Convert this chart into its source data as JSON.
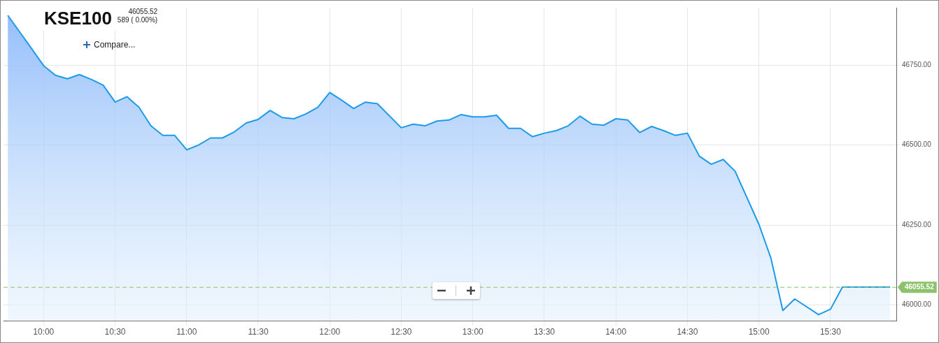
{
  "chart_data": {
    "type": "area",
    "title": "KSE100",
    "subtitle": "46055.52",
    "annotations": [
      "589 ( 0.00%)",
      "Compare..."
    ],
    "x": [
      9.75,
      9.9167,
      10,
      10.0833,
      10.1667,
      10.25,
      10.3333,
      10.4167,
      10.5,
      10.5833,
      10.6667,
      10.75,
      10.8333,
      10.9167,
      11,
      11.0833,
      11.1667,
      11.25,
      11.3333,
      11.4167,
      11.5,
      11.5833,
      11.6667,
      11.75,
      11.8333,
      11.9167,
      12,
      12.0833,
      12.1667,
      12.25,
      12.3333,
      12.5,
      12.5833,
      12.6667,
      12.75,
      12.8333,
      12.9167,
      13,
      13.0833,
      13.1667,
      13.25,
      13.3333,
      13.4167,
      13.5,
      13.5833,
      13.6667,
      13.75,
      13.8333,
      13.9167,
      14,
      14.0833,
      14.1667,
      14.25,
      14.3333,
      14.4167,
      14.5,
      14.5833,
      14.6667,
      14.75,
      14.8333,
      15,
      15.0833,
      15.1667,
      15.25,
      15.4167,
      15.5,
      15.5833,
      15.9167
    ],
    "series": [
      {
        "color": "#1e9be8",
        "values": [
          46905,
          46801,
          46748,
          46718,
          46707,
          46720,
          46705,
          46687,
          46634,
          46651,
          46618,
          46560,
          46530,
          46530,
          46485,
          46500,
          46522,
          46522,
          46541,
          46569,
          46580,
          46608,
          46586,
          46582,
          46597,
          46618,
          46664,
          46640,
          46614,
          46634,
          46629,
          46554,
          46565,
          46560,
          46575,
          46578,
          46595,
          46588,
          46588,
          46593,
          46552,
          46552,
          46526,
          46537,
          46545,
          46560,
          46590,
          46565,
          46562,
          46582,
          46578,
          46539,
          46558,
          46545,
          46530,
          46537,
          46465,
          46440,
          46455,
          46418,
          46252,
          46147,
          45983,
          46019,
          45970,
          45987,
          46056,
          46056
        ]
      }
    ],
    "xlim": [
      9.72,
      15.96
    ],
    "xticks": [
      {
        "value": 10,
        "label": "10:00"
      },
      {
        "value": 10.5,
        "label": "10:30"
      },
      {
        "value": 11,
        "label": "11:00"
      },
      {
        "value": 11.5,
        "label": "11:30"
      },
      {
        "value": 12,
        "label": "12:00"
      },
      {
        "value": 12.5,
        "label": "12:30"
      },
      {
        "value": 13,
        "label": "13:00"
      },
      {
        "value": 13.5,
        "label": "13:30"
      },
      {
        "value": 14,
        "label": "14:00"
      },
      {
        "value": 14.5,
        "label": "14:30"
      },
      {
        "value": 15,
        "label": "15:00"
      },
      {
        "value": 15.5,
        "label": "15:30"
      }
    ],
    "ylim": [
      45950,
      46929
    ],
    "yticks": [
      {
        "value": 46000,
        "label": "46000.00"
      },
      {
        "value": 46250,
        "label": "46250.00"
      },
      {
        "value": 46500,
        "label": "46500.00"
      },
      {
        "value": 46750,
        "label": "46750.00"
      }
    ],
    "ref_lines": [
      {
        "axis": "y",
        "value": 46055.52,
        "label": "46055.52",
        "color": "#8cc26b",
        "line_style": "dashed"
      }
    ],
    "grid": true,
    "legend": false,
    "marker": "none",
    "line_style": "solid"
  }
}
